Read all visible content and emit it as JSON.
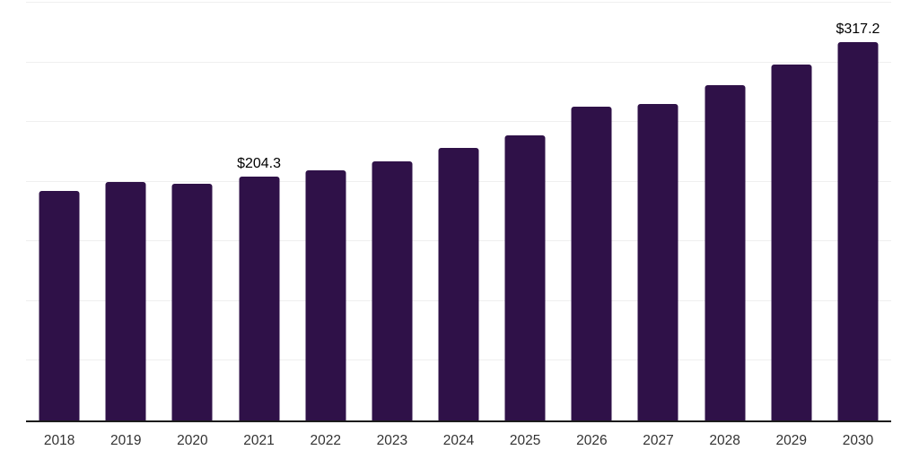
{
  "chart_data": {
    "type": "bar",
    "title": "",
    "xlabel": "",
    "ylabel": "",
    "categories": [
      "2018",
      "2019",
      "2020",
      "2021",
      "2022",
      "2023",
      "2024",
      "2025",
      "2026",
      "2027",
      "2028",
      "2029",
      "2030"
    ],
    "values": [
      192.6,
      200.1,
      198.6,
      204.3,
      209.2,
      217.4,
      228.1,
      239.0,
      262.6,
      265.4,
      281.0,
      298.1,
      317.2
    ],
    "data_labels": {
      "2021": "$204.3",
      "2030": "$317.2"
    },
    "ylim": [
      0,
      350
    ],
    "gridline_interval": 50,
    "grid": true,
    "legend_position": "none",
    "y_axis_tick_labels_visible": false,
    "bar_color": "#2f1148",
    "axis_line_color": "#1c1c1c",
    "gridline_color": "#efefef",
    "data_label_color": "#000000",
    "tick_label_color": "#333333"
  }
}
